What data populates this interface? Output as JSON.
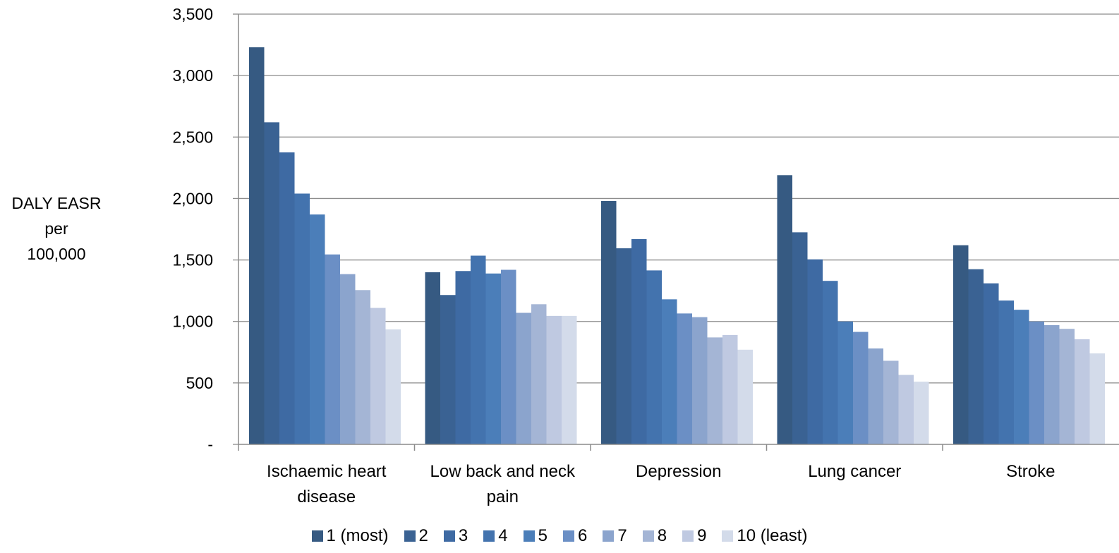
{
  "chart_data": {
    "type": "bar",
    "title": "",
    "ylabel_lines": [
      "DALY EASR",
      "per",
      "100,000"
    ],
    "xlabel": "",
    "ylim": [
      0,
      3500
    ],
    "yticks": [
      {
        "value": 0,
        "label": "-"
      },
      {
        "value": 500,
        "label": "500"
      },
      {
        "value": 1000,
        "label": "1,000"
      },
      {
        "value": 1500,
        "label": "1,500"
      },
      {
        "value": 2000,
        "label": "2,000"
      },
      {
        "value": 2500,
        "label": "2,500"
      },
      {
        "value": 3000,
        "label": "3,000"
      },
      {
        "value": 3500,
        "label": "3,500"
      }
    ],
    "grid": true,
    "legend_position": "bottom",
    "categories": [
      [
        "Ischaemic heart",
        "disease"
      ],
      [
        "Low back and neck",
        "pain"
      ],
      [
        "Depression"
      ],
      [
        "Lung cancer"
      ],
      [
        "Stroke"
      ]
    ],
    "series": [
      {
        "name": "1 (most)",
        "color": "#365a82",
        "values": [
          3230,
          1400,
          1980,
          2190,
          1620
        ]
      },
      {
        "name": "2",
        "color": "#3a6293",
        "values": [
          2620,
          1215,
          1595,
          1725,
          1425
        ]
      },
      {
        "name": "3",
        "color": "#3e6aa3",
        "values": [
          2375,
          1410,
          1670,
          1505,
          1310
        ]
      },
      {
        "name": "4",
        "color": "#4373ae",
        "values": [
          2040,
          1535,
          1415,
          1330,
          1170
        ]
      },
      {
        "name": "5",
        "color": "#4b7eb9",
        "values": [
          1870,
          1390,
          1180,
          1000,
          1095
        ]
      },
      {
        "name": "6",
        "color": "#6b8fc5",
        "values": [
          1545,
          1420,
          1065,
          915,
          1000
        ]
      },
      {
        "name": "7",
        "color": "#8ba4cd",
        "values": [
          1385,
          1070,
          1035,
          780,
          970
        ]
      },
      {
        "name": "8",
        "color": "#a4b5d5",
        "values": [
          1255,
          1140,
          870,
          680,
          940
        ]
      },
      {
        "name": "9",
        "color": "#bfc9e1",
        "values": [
          1110,
          1045,
          890,
          565,
          855
        ]
      },
      {
        "name": "10 (least)",
        "color": "#d3dbea",
        "values": [
          935,
          1045,
          770,
          510,
          740
        ]
      }
    ]
  }
}
